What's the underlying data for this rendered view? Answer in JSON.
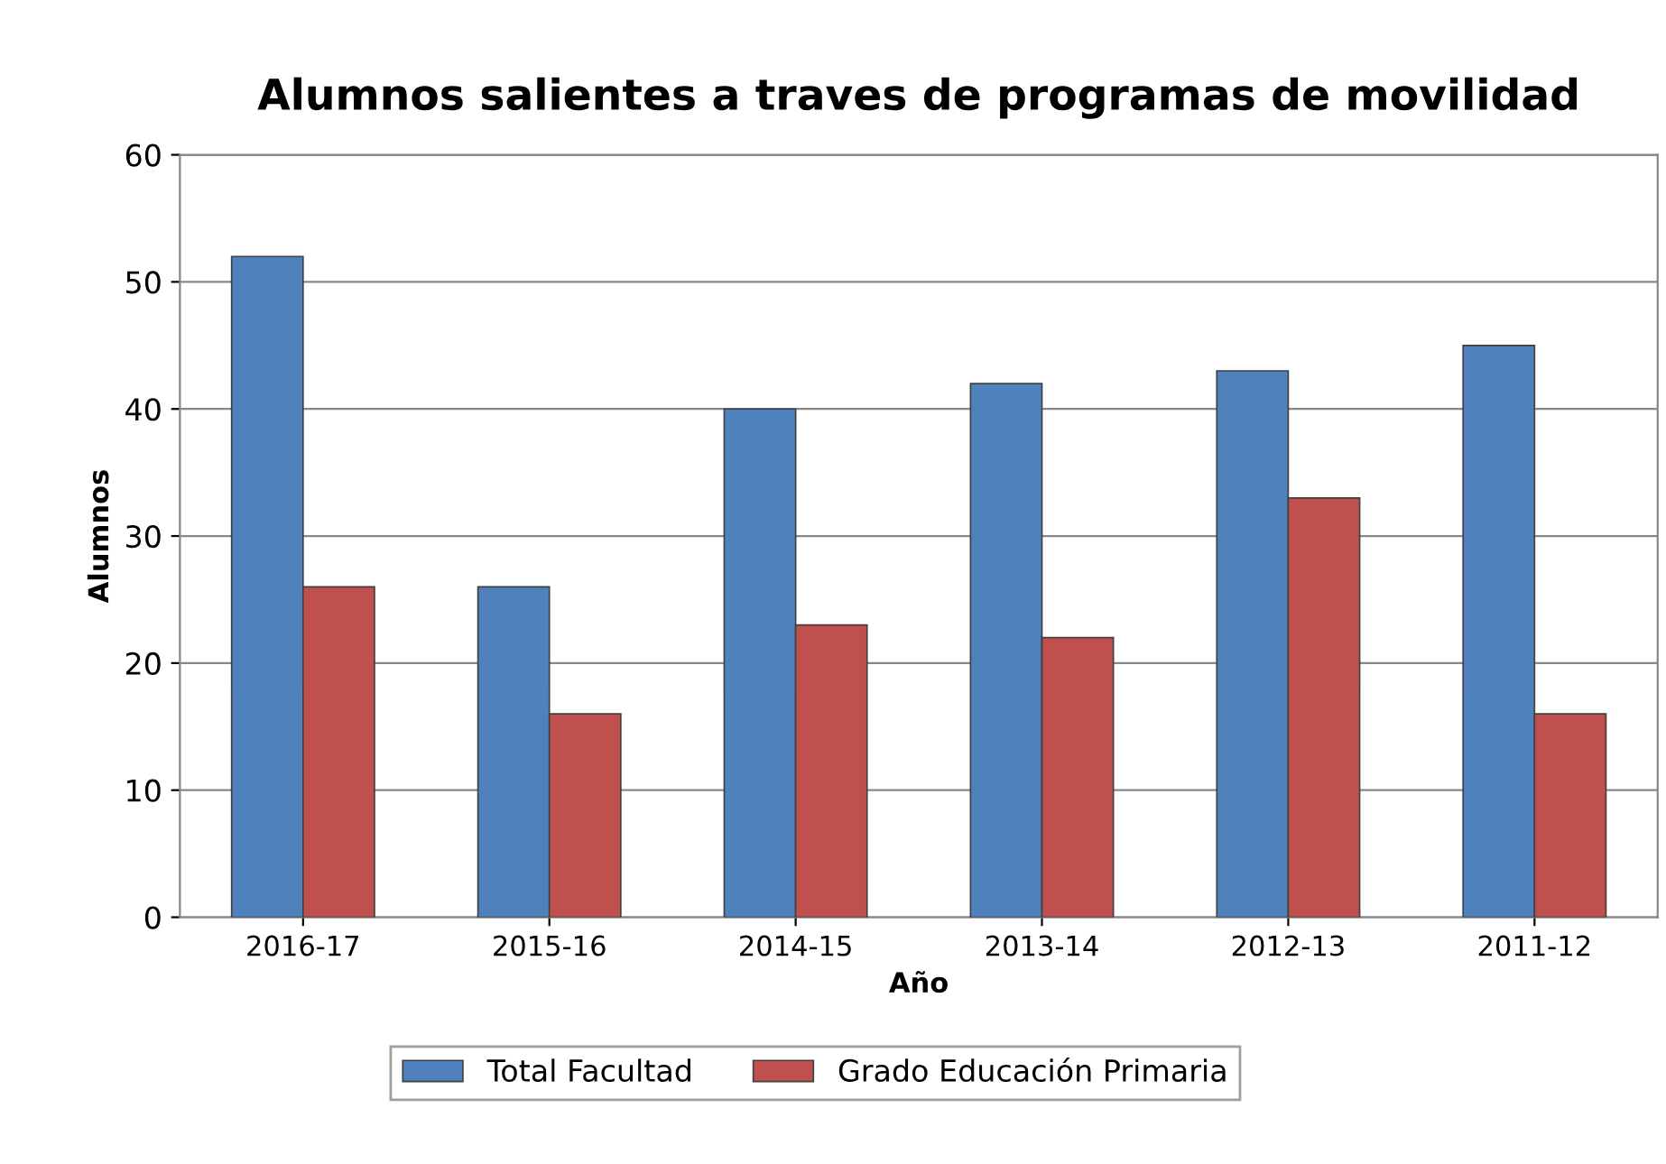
{
  "chart_data": {
    "type": "bar",
    "title": "Alumnos salientes a traves de programas de movilidad",
    "xlabel": "Año",
    "ylabel": "Alumnos",
    "categories": [
      "2016-17",
      "2015-16",
      "2014-15",
      "2013-14",
      "2012-13",
      "2011-12"
    ],
    "series": [
      {
        "name": "Total Facultad",
        "color": "#4f81bd",
        "values": [
          52,
          26,
          40,
          42,
          43,
          45
        ]
      },
      {
        "name": "Grado Educación Primaria",
        "color": "#c0504d",
        "values": [
          26,
          16,
          23,
          22,
          33,
          16
        ]
      }
    ],
    "ylim": [
      0,
      60
    ],
    "yticks": [
      0,
      10,
      20,
      30,
      40,
      50,
      60
    ],
    "grid": "y",
    "legend": "bottom"
  }
}
